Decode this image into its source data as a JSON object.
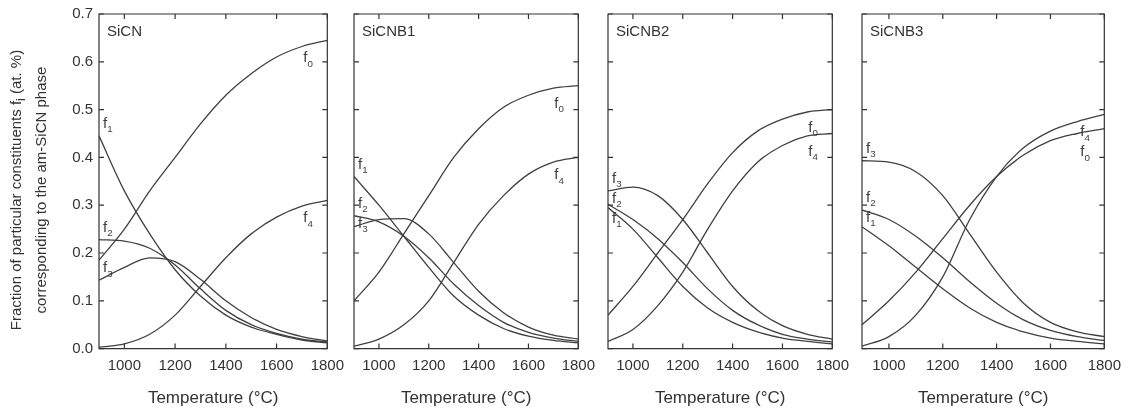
{
  "chart_data": [
    {
      "type": "line",
      "title": "SiCN",
      "xlabel": "Temperature (°C)",
      "ylabel": "Fraction of particular constituents f$_{i}$ (at. %)\ncorresponding to the am-SiCN phase",
      "x": [
        900,
        1000,
        1100,
        1200,
        1300,
        1400,
        1500,
        1600,
        1700,
        1800
      ],
      "xlim": [
        900,
        1800
      ],
      "xticks": [
        1000,
        1200,
        1400,
        1600,
        1800
      ],
      "ylim": [
        0,
        0.7
      ],
      "yticks": [
        {
          "value": 0,
          "label": "0.0"
        },
        0.1,
        0.2,
        0.3,
        0.4,
        0.5,
        0.6,
        0.7
      ],
      "series": [
        {
          "name": "f$_{0}$",
          "color": "#404040",
          "values": [
            0.185,
            0.25,
            0.33,
            0.4,
            0.47,
            0.53,
            0.575,
            0.61,
            0.632,
            0.645
          ]
        },
        {
          "name": "f$_{1}$",
          "color": "#404040",
          "values": [
            0.445,
            0.33,
            0.24,
            0.165,
            0.11,
            0.07,
            0.045,
            0.03,
            0.018,
            0.012
          ]
        },
        {
          "name": "f$_{2}$",
          "color": "#404040",
          "values": [
            0.228,
            0.225,
            0.21,
            0.175,
            0.125,
            0.08,
            0.05,
            0.032,
            0.02,
            0.014
          ]
        },
        {
          "name": "f$_{3}$",
          "color": "#404040",
          "values": [
            0.143,
            0.17,
            0.19,
            0.182,
            0.145,
            0.1,
            0.065,
            0.04,
            0.025,
            0.016
          ]
        },
        {
          "name": "f$_{4}$",
          "color": "#404040",
          "values": [
            0.003,
            0.01,
            0.03,
            0.07,
            0.13,
            0.19,
            0.24,
            0.275,
            0.298,
            0.31
          ]
        }
      ]
    },
    {
      "type": "line",
      "title": "SiCNB1",
      "xlabel": "Temperature (°C)",
      "tick_labels": "x",
      "x": [
        900,
        1000,
        1100,
        1200,
        1300,
        1400,
        1500,
        1600,
        1700,
        1800
      ],
      "xlim": [
        900,
        1800
      ],
      "xticks": [
        1000,
        1200,
        1400,
        1600,
        1800
      ],
      "ylim": [
        0,
        0.7
      ],
      "yticks": [
        0,
        0.1,
        0.2,
        0.3,
        0.4,
        0.5,
        0.6,
        0.7
      ],
      "series": [
        {
          "name": "f$_{0}$",
          "color": "#404040",
          "values": [
            0.1,
            0.16,
            0.24,
            0.32,
            0.4,
            0.46,
            0.505,
            0.53,
            0.545,
            0.55
          ]
        },
        {
          "name": "f$_{1}$",
          "color": "#404040",
          "values": [
            0.36,
            0.3,
            0.235,
            0.17,
            0.11,
            0.07,
            0.042,
            0.026,
            0.017,
            0.012
          ]
        },
        {
          "name": "f$_{2}$",
          "color": "#404040",
          "values": [
            0.278,
            0.265,
            0.235,
            0.19,
            0.135,
            0.09,
            0.055,
            0.034,
            0.022,
            0.015
          ]
        },
        {
          "name": "f$_{3}$",
          "color": "#404040",
          "values": [
            0.255,
            0.27,
            0.272,
            0.24,
            0.18,
            0.12,
            0.075,
            0.045,
            0.028,
            0.02
          ]
        },
        {
          "name": "f$_{4}$",
          "color": "#404040",
          "values": [
            0.005,
            0.02,
            0.05,
            0.1,
            0.18,
            0.26,
            0.32,
            0.365,
            0.39,
            0.4
          ]
        }
      ]
    },
    {
      "type": "line",
      "title": "SiCNB2",
      "xlabel": "Temperature (°C)",
      "tick_labels": "x",
      "x": [
        900,
        1000,
        1100,
        1200,
        1300,
        1400,
        1500,
        1600,
        1700,
        1800
      ],
      "xlim": [
        900,
        1800
      ],
      "xticks": [
        1000,
        1200,
        1400,
        1600,
        1800
      ],
      "ylim": [
        0,
        0.7
      ],
      "yticks": [
        0,
        0.1,
        0.2,
        0.3,
        0.4,
        0.5,
        0.6,
        0.7
      ],
      "series": [
        {
          "name": "f$_{0}$",
          "color": "#404040",
          "values": [
            0.07,
            0.13,
            0.2,
            0.27,
            0.345,
            0.41,
            0.455,
            0.48,
            0.495,
            0.5
          ]
        },
        {
          "name": "f$_{1}$",
          "color": "#404040",
          "values": [
            0.295,
            0.25,
            0.19,
            0.13,
            0.085,
            0.055,
            0.035,
            0.022,
            0.015,
            0.01
          ]
        },
        {
          "name": "f$_{2}$",
          "color": "#404040",
          "values": [
            0.302,
            0.27,
            0.23,
            0.18,
            0.125,
            0.08,
            0.05,
            0.03,
            0.02,
            0.014
          ]
        },
        {
          "name": "f$_{3}$",
          "color": "#404040",
          "values": [
            0.33,
            0.338,
            0.32,
            0.27,
            0.2,
            0.13,
            0.08,
            0.048,
            0.03,
            0.02
          ]
        },
        {
          "name": "f$_{4}$",
          "color": "#404040",
          "values": [
            0.015,
            0.04,
            0.09,
            0.16,
            0.25,
            0.33,
            0.39,
            0.425,
            0.445,
            0.45
          ]
        }
      ]
    },
    {
      "type": "line",
      "title": "SiCNB3",
      "xlabel": "Temperature (°C)",
      "tick_labels": "x",
      "x": [
        900,
        1000,
        1100,
        1200,
        1300,
        1400,
        1500,
        1600,
        1700,
        1800
      ],
      "xlim": [
        900,
        1800
      ],
      "xticks": [
        1000,
        1200,
        1400,
        1600,
        1800
      ],
      "ylim": [
        0,
        0.7
      ],
      "yticks": [
        0,
        0.1,
        0.2,
        0.3,
        0.4,
        0.5,
        0.6,
        0.7
      ],
      "series": [
        {
          "name": "f$_{0}$",
          "color": "#404040",
          "values": [
            0.05,
            0.1,
            0.16,
            0.23,
            0.3,
            0.36,
            0.405,
            0.435,
            0.45,
            0.46
          ]
        },
        {
          "name": "f$_{1}$",
          "color": "#404040",
          "values": [
            0.255,
            0.215,
            0.17,
            0.125,
            0.085,
            0.055,
            0.035,
            0.022,
            0.015,
            0.01
          ]
        },
        {
          "name": "f$_{2}$",
          "color": "#404040",
          "values": [
            0.29,
            0.27,
            0.235,
            0.19,
            0.14,
            0.095,
            0.06,
            0.038,
            0.025,
            0.017
          ]
        },
        {
          "name": "f$_{3}$",
          "color": "#404040",
          "values": [
            0.393,
            0.39,
            0.37,
            0.32,
            0.24,
            0.16,
            0.095,
            0.055,
            0.035,
            0.025
          ]
        },
        {
          "name": "f$_{4}$",
          "color": "#404040",
          "values": [
            0.005,
            0.025,
            0.07,
            0.15,
            0.27,
            0.36,
            0.42,
            0.455,
            0.475,
            0.49
          ]
        }
      ]
    }
  ]
}
